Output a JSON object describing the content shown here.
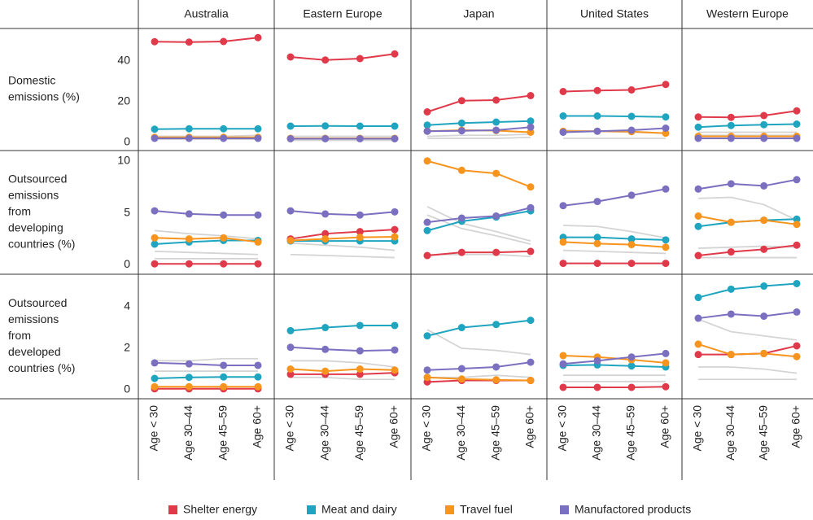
{
  "chart_data": {
    "type": "line",
    "categories": [
      "Age < 30",
      "Age 30–44",
      "Age 45–59",
      "Age 60+"
    ],
    "columns": [
      "Australia",
      "Eastern Europe",
      "Japan",
      "United States",
      "Western Europe"
    ],
    "rows": [
      {
        "label": [
          "Domestic",
          "emissions (%)"
        ],
        "ylim": [
          -4,
          56
        ],
        "yticks": [
          0,
          20,
          40
        ]
      },
      {
        "label": [
          "Outsourced",
          "emissions",
          "from",
          "developing",
          "countries (%)"
        ],
        "ylim": [
          -0.9,
          11
        ],
        "yticks": [
          0,
          5,
          10
        ]
      },
      {
        "label": [
          "Outsourced",
          "emissions",
          "from",
          "developed",
          "countries (%)"
        ],
        "ylim": [
          -0.43,
          5.57
        ],
        "yticks": [
          0,
          2,
          4
        ]
      }
    ],
    "series": [
      {
        "name": "Shelter energy",
        "color": "#e03a4a"
      },
      {
        "name": "Meat and dairy",
        "color": "#1fa5c0"
      },
      {
        "name": "Travel fuel",
        "color": "#f7941d"
      },
      {
        "name": "Manufactored products",
        "color": "#7b6fc0"
      }
    ],
    "gray_color": "#d4d4d4",
    "panels": [
      [
        {
          "lines": [
            [
              49.5,
              49.3,
              49.6,
              51.5
            ],
            [
              6.5,
              6.7,
              6.7,
              6.7
            ],
            [
              2.5,
              2.5,
              2.5,
              2.5
            ],
            [
              2,
              2,
              2,
              2
            ]
          ],
          "gray_lines": [
            [
              3,
              3,
              3,
              3.5
            ],
            [
              1.5,
              1.5,
              1.5,
              1.5
            ]
          ]
        },
        {
          "lines": [
            [
              42,
              40.5,
              41.2,
              43.5
            ],
            [
              8,
              8.1,
              8,
              8
            ],
            [
              2,
              2,
              2,
              2
            ],
            [
              1.8,
              1.8,
              1.8,
              1.8
            ]
          ],
          "gray_lines": [
            [
              3,
              3,
              3,
              3
            ],
            [
              1,
              1,
              1,
              1
            ]
          ]
        },
        {
          "lines": [
            [
              15,
              20.5,
              20.8,
              23
            ],
            [
              8.5,
              9.5,
              10,
              10.5
            ],
            [
              5.5,
              6,
              5.8,
              5
            ],
            [
              5.5,
              5.7,
              6,
              7.5
            ]
          ],
          "gray_lines": [
            [
              3,
              3.5,
              3.5,
              4
            ],
            [
              2,
              2,
              2,
              2.5
            ]
          ]
        },
        {
          "lines": [
            [
              25,
              25.5,
              25.8,
              28.5
            ],
            [
              13,
              13,
              12.8,
              12.5
            ],
            [
              5.5,
              5.5,
              5.3,
              4.5
            ],
            [
              5,
              5.5,
              6,
              7
            ]
          ],
          "gray_lines": [
            [
              6,
              5.5,
              5,
              4.5
            ],
            [
              2,
              2,
              2,
              2
            ]
          ]
        },
        {
          "lines": [
            [
              12.5,
              12.3,
              13.2,
              15.5
            ],
            [
              7.5,
              8.3,
              8.7,
              9
            ],
            [
              3,
              3,
              3,
              3
            ],
            [
              2,
              2,
              2,
              2
            ]
          ],
          "gray_lines": [
            [
              5,
              5,
              5,
              5
            ],
            [
              3.5,
              3.5,
              3.5,
              3.5
            ]
          ]
        }
      ],
      [
        {
          "lines": [
            [
              0.1,
              0.1,
              0.1,
              0.1
            ],
            [
              2,
              2.2,
              2.35,
              2.35
            ],
            [
              2.6,
              2.5,
              2.6,
              2.2
            ],
            [
              5.2,
              4.9,
              4.8,
              4.8
            ]
          ],
          "gray_lines": [
            [
              3.3,
              3,
              2.8,
              2.5
            ],
            [
              1.3,
              1.2,
              1.1,
              1
            ],
            [
              0.6,
              0.6,
              0.6,
              0.6
            ]
          ]
        },
        {
          "lines": [
            [
              2.5,
              3,
              3.2,
              3.4
            ],
            [
              2.3,
              2.3,
              2.3,
              2.3
            ],
            [
              2.35,
              2.5,
              2.65,
              2.7
            ],
            [
              5.2,
              4.9,
              4.8,
              5.1
            ]
          ],
          "gray_lines": [
            [
              2.1,
              1.9,
              1.7,
              1.4
            ],
            [
              1,
              0.9,
              0.8,
              0.7
            ]
          ]
        },
        {
          "lines": [
            [
              0.9,
              1.2,
              1.2,
              1.3
            ],
            [
              3.3,
              4.2,
              4.6,
              5.2
            ],
            [
              10,
              9.1,
              8.8,
              7.5
            ],
            [
              4.1,
              4.5,
              4.7,
              5.5
            ]
          ],
          "gray_lines": [
            [
              5.6,
              4,
              3.2,
              2.3
            ],
            [
              4.8,
              3.5,
              2.8,
              2
            ],
            [
              1,
              1,
              1,
              0.8
            ]
          ]
        },
        {
          "lines": [
            [
              0.15,
              0.15,
              0.15,
              0.15
            ],
            [
              2.65,
              2.65,
              2.5,
              2.4
            ],
            [
              2.2,
              2.05,
              1.95,
              1.7
            ],
            [
              5.7,
              6.1,
              6.7,
              7.3
            ]
          ],
          "gray_lines": [
            [
              3.8,
              3.7,
              3.2,
              2.6
            ],
            [
              1.4,
              1.3,
              1.2,
              1.1
            ]
          ]
        },
        {
          "lines": [
            [
              0.9,
              1.25,
              1.5,
              1.9
            ],
            [
              3.7,
              4.1,
              4.3,
              4.4
            ],
            [
              4.7,
              4.1,
              4.3,
              3.9
            ],
            [
              7.3,
              7.8,
              7.6,
              8.2
            ]
          ],
          "gray_lines": [
            [
              6.4,
              6.5,
              5.8,
              4.3
            ],
            [
              1.6,
              1.7,
              1.8,
              1.7
            ],
            [
              0.7,
              0.7,
              0.7,
              0.7
            ]
          ]
        }
      ],
      [
        {
          "lines": [
            [
              0.05,
              0.05,
              0.05,
              0.05
            ],
            [
              0.55,
              0.6,
              0.62,
              0.62
            ],
            [
              0.15,
              0.15,
              0.15,
              0.15
            ],
            [
              1.3,
              1.25,
              1.18,
              1.18
            ]
          ],
          "gray_lines": [
            [
              1.4,
              1.4,
              1.5,
              1.5
            ],
            [
              0.9,
              0.9,
              0.9,
              0.9
            ]
          ]
        },
        {
          "lines": [
            [
              0.75,
              0.75,
              0.75,
              0.82
            ],
            [
              2.85,
              3,
              3.1,
              3.1
            ],
            [
              1,
              0.9,
              1,
              0.95
            ],
            [
              2.05,
              1.95,
              1.88,
              1.92
            ]
          ],
          "gray_lines": [
            [
              1.4,
              1.4,
              1.3,
              1.1
            ],
            [
              0.6,
              0.6,
              0.5,
              0.5
            ]
          ]
        },
        {
          "lines": [
            [
              0.38,
              0.45,
              0.45,
              0.45
            ],
            [
              2.6,
              3,
              3.15,
              3.35
            ],
            [
              0.6,
              0.52,
              0.48,
              0.45
            ],
            [
              0.95,
              1.02,
              1.1,
              1.33
            ]
          ],
          "gray_lines": [
            [
              2.9,
              2,
              1.9,
              1.7
            ],
            [
              0.6,
              0.6,
              0.7,
              0.6
            ]
          ]
        },
        {
          "lines": [
            [
              0.12,
              0.12,
              0.12,
              0.15
            ],
            [
              1.18,
              1.2,
              1.15,
              1.1
            ],
            [
              1.65,
              1.58,
              1.45,
              1.3
            ],
            [
              1.25,
              1.4,
              1.58,
              1.75
            ]
          ],
          "gray_lines": [
            [
              0.7,
              0.7,
              0.7,
              0.7
            ],
            [
              0.4,
              0.4,
              0.4,
              0.4
            ]
          ]
        },
        {
          "lines": [
            [
              1.7,
              1.7,
              1.75,
              2.12
            ],
            [
              4.45,
              4.85,
              5,
              5.12
            ],
            [
              2.2,
              1.7,
              1.75,
              1.6
            ],
            [
              3.45,
              3.65,
              3.55,
              3.75
            ]
          ],
          "gray_lines": [
            [
              3.4,
              2.8,
              2.6,
              2.4
            ],
            [
              1.1,
              1.1,
              1,
              0.8
            ],
            [
              0.5,
              0.5,
              0.5,
              0.5
            ]
          ]
        }
      ]
    ]
  }
}
